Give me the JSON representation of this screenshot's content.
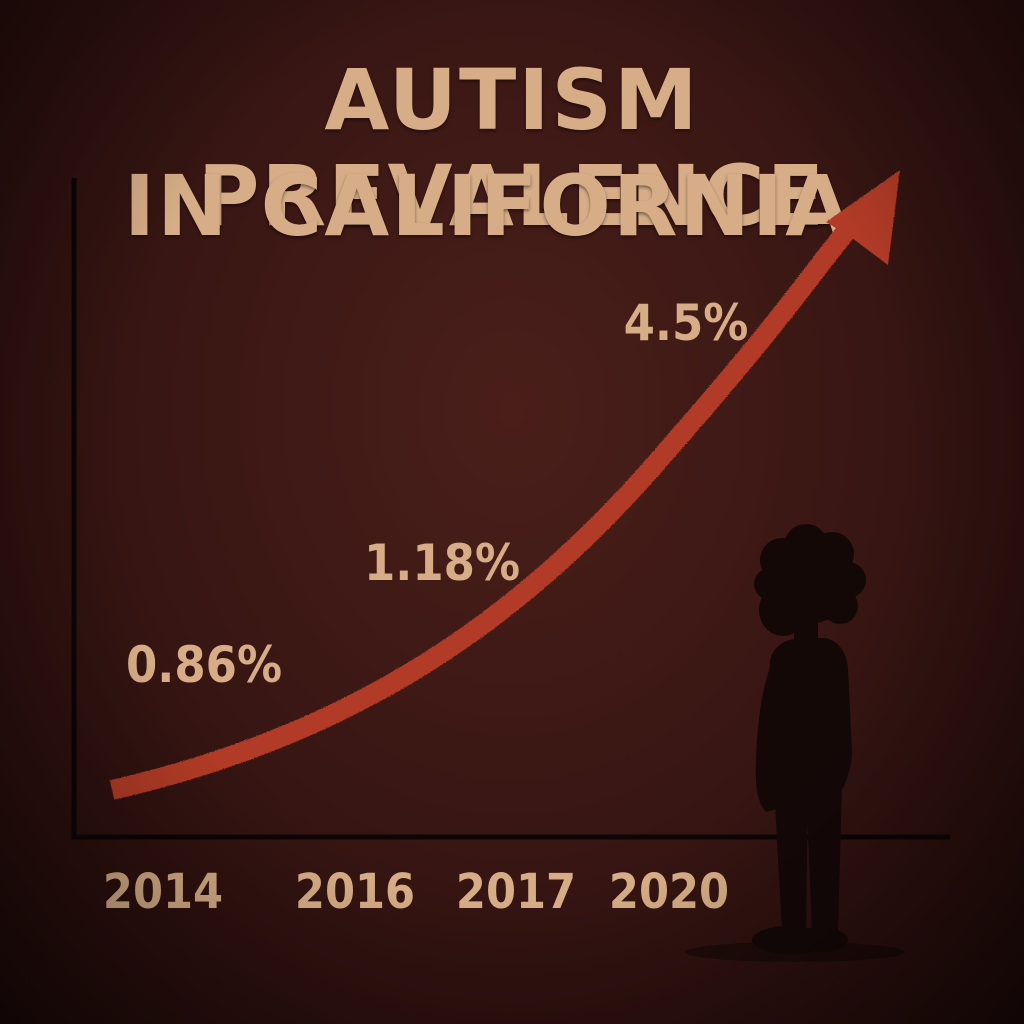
{
  "title": {
    "line1": "AUTISM PREVALENCE",
    "line2": "IN CALIFORNIA"
  },
  "colors": {
    "background": "#3a1714",
    "text": "#d6ad86",
    "arrow": "#b13a26",
    "axis": "#0e0505",
    "silhouette": "#140807"
  },
  "chart_data": {
    "type": "line",
    "title": "AUTISM PREVALENCE IN CALIFORNIA",
    "xlabel": "",
    "ylabel": "",
    "categories": [
      "2014",
      "2016",
      "2017",
      "2020"
    ],
    "series": [
      {
        "values": [
          0.86,
          1.18,
          2.0,
          4.5
        ],
        "labels": [
          "0.86%",
          "1.18%",
          "",
          "4.5%"
        ]
      }
    ],
    "trend_arrow": true,
    "grid": false,
    "legend": "none"
  }
}
